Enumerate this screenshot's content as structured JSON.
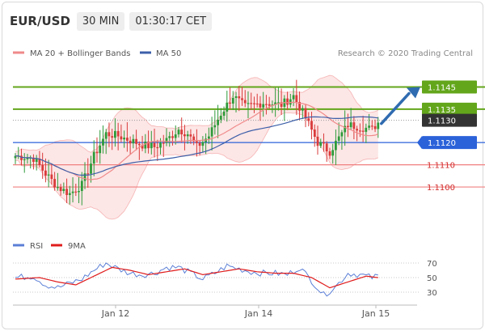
{
  "header": {
    "pair": "EUR/USD",
    "timeframe": "30 MIN",
    "time": "01:30:17 CET"
  },
  "legend": {
    "bb_label": "MA 20 + Bollinger Bands",
    "ma50_label": "MA 50",
    "research": "Research © 2020 Trading Central"
  },
  "rsi_legend": {
    "rsi_label": "RSI",
    "ma_label": "9MA"
  },
  "colors": {
    "bull": "#2e9b3a",
    "bear": "#d93b3b",
    "ma50": "#3c5fa8",
    "bb": "#f08a8a",
    "band": "#fde2e2",
    "resist": "#63a61b",
    "pivot": "#2b62d9",
    "support": "#f07f7f",
    "arrow": "#2f6bb0"
  },
  "chart_data": [
    {
      "type": "line",
      "title": "",
      "x": [
        "Jan 12",
        "Jan 14",
        "Jan 15"
      ],
      "ylim": [
        1.108,
        1.1155
      ],
      "levels": [
        {
          "value": "1.1145",
          "kind": "resistance"
        },
        {
          "value": "1.1135",
          "kind": "resistance"
        },
        {
          "value": "1.1130",
          "kind": "last"
        },
        {
          "value": "1.1120",
          "kind": "pivot"
        },
        {
          "value": "1.1110",
          "kind": "support"
        },
        {
          "value": "1.1100",
          "kind": "support"
        }
      ],
      "anchors": [
        [
          0,
          1.1114
        ],
        [
          6,
          1.1113
        ],
        [
          10,
          1.1106
        ],
        [
          14,
          1.11
        ],
        [
          18,
          1.1097
        ],
        [
          22,
          1.1101
        ],
        [
          26,
          1.1114
        ],
        [
          30,
          1.1124
        ],
        [
          34,
          1.1123
        ],
        [
          38,
          1.1121
        ],
        [
          42,
          1.1119
        ],
        [
          46,
          1.1118
        ],
        [
          50,
          1.1121
        ],
        [
          54,
          1.1126
        ],
        [
          57,
          1.1124
        ],
        [
          60,
          1.1118
        ],
        [
          64,
          1.1123
        ],
        [
          68,
          1.1133
        ],
        [
          72,
          1.1141
        ],
        [
          76,
          1.1136
        ],
        [
          82,
          1.1138
        ],
        [
          88,
          1.1137
        ],
        [
          92,
          1.1141
        ],
        [
          96,
          1.1131
        ],
        [
          100,
          1.112
        ],
        [
          104,
          1.1116
        ],
        [
          110,
          1.1128
        ],
        [
          114,
          1.1127
        ],
        [
          118,
          1.1126
        ],
        [
          120,
          1.1129
        ]
      ],
      "projection": {
        "from": 1.113,
        "to": 1.1145
      }
    },
    {
      "type": "line",
      "title": "",
      "ylim": [
        20,
        80
      ],
      "y_ticks": [
        "70",
        "50",
        "30"
      ],
      "anchors": [
        [
          0,
          50
        ],
        [
          6,
          52
        ],
        [
          10,
          40
        ],
        [
          14,
          36
        ],
        [
          18,
          42
        ],
        [
          22,
          48
        ],
        [
          26,
          60
        ],
        [
          30,
          70
        ],
        [
          34,
          62
        ],
        [
          38,
          56
        ],
        [
          42,
          54
        ],
        [
          46,
          56
        ],
        [
          50,
          64
        ],
        [
          54,
          64
        ],
        [
          58,
          56
        ],
        [
          62,
          48
        ],
        [
          66,
          56
        ],
        [
          70,
          66
        ],
        [
          74,
          62
        ],
        [
          78,
          58
        ],
        [
          82,
          56
        ],
        [
          86,
          56
        ],
        [
          90,
          54
        ],
        [
          94,
          64
        ],
        [
          98,
          46
        ],
        [
          102,
          26
        ],
        [
          106,
          38
        ],
        [
          110,
          56
        ],
        [
          114,
          54
        ],
        [
          118,
          50
        ],
        [
          120,
          52
        ]
      ],
      "ma_anchors": [
        [
          0,
          48
        ],
        [
          8,
          50
        ],
        [
          14,
          44
        ],
        [
          20,
          40
        ],
        [
          26,
          52
        ],
        [
          32,
          64
        ],
        [
          38,
          60
        ],
        [
          44,
          54
        ],
        [
          50,
          58
        ],
        [
          56,
          62
        ],
        [
          62,
          54
        ],
        [
          68,
          58
        ],
        [
          74,
          62
        ],
        [
          80,
          58
        ],
        [
          86,
          56
        ],
        [
          92,
          56
        ],
        [
          98,
          50
        ],
        [
          104,
          36
        ],
        [
          110,
          44
        ],
        [
          116,
          52
        ],
        [
          120,
          50
        ]
      ]
    }
  ]
}
